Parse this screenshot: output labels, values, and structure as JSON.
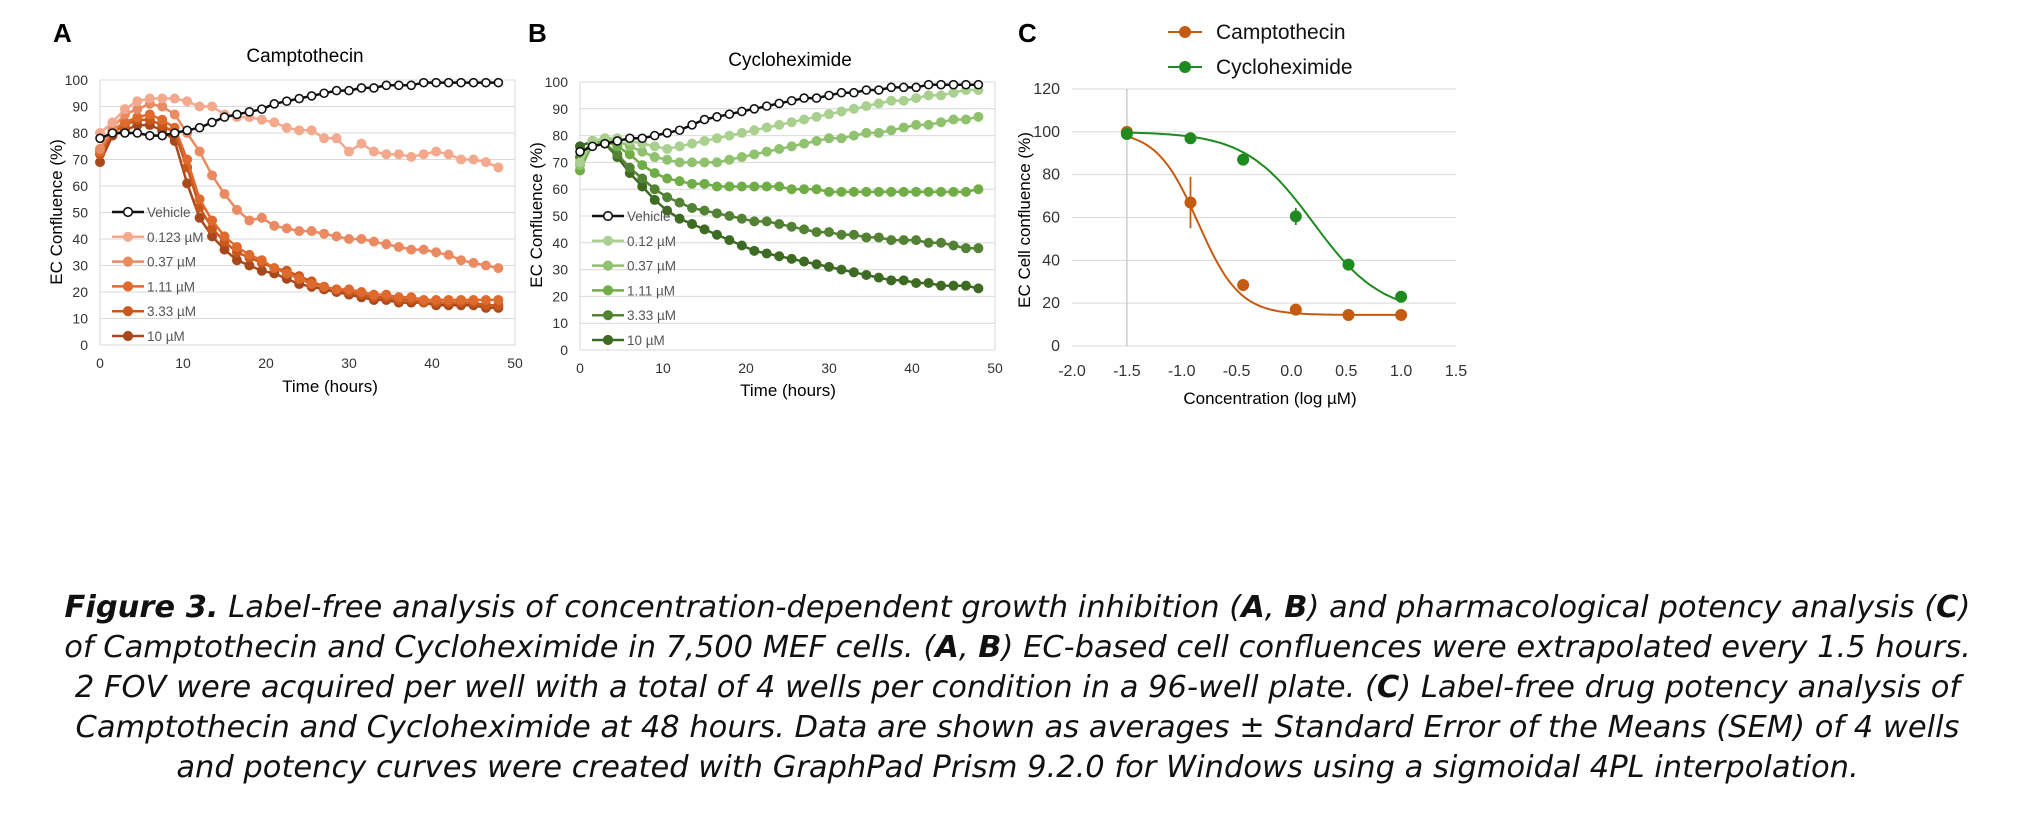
{
  "panels": {
    "A": {
      "letter": "A",
      "chart_data": {
        "type": "line",
        "title": "Camptothecin",
        "xlabel": "Time (hours)",
        "ylabel": "EC Confluence (%)",
        "xlim": [
          0,
          50
        ],
        "ylim": [
          0,
          100
        ],
        "xticks": [
          0,
          10,
          20,
          30,
          40,
          50
        ],
        "yticks": [
          0,
          10,
          20,
          30,
          40,
          50,
          60,
          70,
          80,
          90,
          100
        ],
        "legend_position": "lower-left",
        "x": [
          0,
          1.5,
          3,
          4.5,
          6,
          7.5,
          9,
          10.5,
          12,
          13.5,
          15,
          16.5,
          18,
          19.5,
          21,
          22.5,
          24,
          25.5,
          27,
          28.5,
          30,
          31.5,
          33,
          34.5,
          36,
          37.5,
          39,
          40.5,
          42,
          43.5,
          45,
          46.5,
          48
        ],
        "series": [
          {
            "name": "Vehicle",
            "color": "#111111",
            "open": true,
            "values": [
              78,
              80,
              80,
              80,
              79,
              79,
              80,
              81,
              82,
              84,
              86,
              87,
              88,
              89,
              91,
              92,
              93,
              94,
              95,
              96,
              96,
              97,
              97,
              98,
              98,
              98,
              99,
              99,
              99,
              99,
              99,
              99,
              99
            ]
          },
          {
            "name": "0.123 µM",
            "color": "#f3a98e",
            "values": [
              80,
              84,
              89,
              92,
              93,
              93,
              93,
              92,
              90,
              90,
              87,
              86,
              86,
              85,
              84,
              82,
              81,
              81,
              78,
              78,
              73,
              76,
              73,
              72,
              72,
              71,
              72,
              73,
              72,
              70,
              70,
              69,
              67
            ]
          },
          {
            "name": "0.37 µM",
            "color": "#ea8a62",
            "values": [
              74,
              82,
              87,
              89,
              91,
              90,
              87,
              80,
              73,
              64,
              57,
              51,
              47,
              48,
              45,
              44,
              43,
              43,
              42,
              41,
              40,
              40,
              39,
              38,
              37,
              36,
              36,
              35,
              34,
              32,
              31,
              30,
              29
            ]
          },
          {
            "name": "1.11 µM",
            "color": "#de6a2e",
            "values": [
              73,
              81,
              84,
              86,
              87,
              85,
              82,
              70,
              55,
              47,
              41,
              37,
              34,
              32,
              29,
              27,
              25,
              23,
              22,
              21,
              21,
              20,
              19,
              19,
              18,
              18,
              17,
              17,
              17,
              17,
              17,
              17,
              17
            ]
          },
          {
            "name": "3.33 µM",
            "color": "#c9581b",
            "values": [
              72,
              80,
              83,
              85,
              85,
              83,
              80,
              67,
              52,
              44,
              39,
              35,
              33,
              31,
              29,
              28,
              26,
              24,
              22,
              21,
              20,
              19,
              18,
              18,
              17,
              17,
              16,
              16,
              16,
              16,
              16,
              15,
              15
            ]
          },
          {
            "name": "10 µM",
            "color": "#a9481c",
            "values": [
              69,
              79,
              81,
              83,
              83,
              81,
              77,
              61,
              48,
              41,
              36,
              32,
              30,
              28,
              27,
              25,
              23,
              22,
              21,
              20,
              19,
              18,
              17,
              17,
              16,
              16,
              16,
              15,
              15,
              15,
              15,
              14,
              14
            ]
          }
        ]
      }
    },
    "B": {
      "letter": "B",
      "chart_data": {
        "type": "line",
        "title": "Cycloheximide",
        "xlabel": "Time (hours)",
        "ylabel": "EC Confluence (%)",
        "xlim": [
          0,
          50
        ],
        "ylim": [
          0,
          100
        ],
        "xticks": [
          0,
          10,
          20,
          30,
          40,
          50
        ],
        "yticks": [
          0,
          10,
          20,
          30,
          40,
          50,
          60,
          70,
          80,
          90,
          100
        ],
        "legend_position": "lower-left",
        "x": [
          0,
          1.5,
          3,
          4.5,
          6,
          7.5,
          9,
          10.5,
          12,
          13.5,
          15,
          16.5,
          18,
          19.5,
          21,
          22.5,
          24,
          25.5,
          27,
          28.5,
          30,
          31.5,
          33,
          34.5,
          36,
          37.5,
          39,
          40.5,
          42,
          43.5,
          45,
          46.5,
          48
        ],
        "series": [
          {
            "name": "Vehicle",
            "color": "#111111",
            "open": true,
            "values": [
              74,
              76,
              77,
              78,
              79,
              79,
              80,
              81,
              82,
              84,
              86,
              87,
              88,
              89,
              90,
              91,
              92,
              93,
              94,
              94,
              95,
              96,
              96,
              97,
              97,
              98,
              98,
              98,
              99,
              99,
              99,
              99,
              99
            ]
          },
          {
            "name": "0.12 µM",
            "color": "#a9d08e",
            "values": [
              70,
              78,
              79,
              79,
              78,
              77,
              76,
              75,
              76,
              77,
              78,
              79,
              80,
              81,
              82,
              83,
              84,
              85,
              86,
              87,
              88,
              89,
              90,
              91,
              92,
              93,
              93,
              94,
              95,
              95,
              96,
              97,
              97
            ]
          },
          {
            "name": "0.37 µM",
            "color": "#8fc16f",
            "values": [
              69,
              78,
              79,
              78,
              76,
              74,
              72,
              71,
              70,
              70,
              70,
              70,
              71,
              72,
              73,
              74,
              75,
              76,
              77,
              78,
              79,
              79,
              80,
              81,
              81,
              82,
              83,
              84,
              84,
              85,
              86,
              86,
              87
            ]
          },
          {
            "name": "1.11 µM",
            "color": "#70ad47",
            "values": [
              67,
              77,
              78,
              76,
              73,
              69,
              66,
              64,
              63,
              62,
              62,
              61,
              61,
              61,
              61,
              61,
              61,
              60,
              60,
              60,
              59,
              59,
              59,
              59,
              59,
              59,
              59,
              59,
              59,
              59,
              59,
              59,
              60
            ]
          },
          {
            "name": "3.33 µM",
            "color": "#548235",
            "values": [
              72,
              78,
              77,
              73,
              68,
              64,
              60,
              57,
              55,
              53,
              52,
              51,
              50,
              49,
              48,
              48,
              47,
              46,
              45,
              44,
              44,
              43,
              43,
              42,
              42,
              41,
              41,
              41,
              40,
              40,
              39,
              38,
              38
            ]
          },
          {
            "name": "10 µM",
            "color": "#3e6b23",
            "values": [
              76,
              78,
              77,
              72,
              66,
              61,
              56,
              52,
              49,
              47,
              45,
              43,
              41,
              39,
              37,
              36,
              35,
              34,
              33,
              32,
              31,
              30,
              29,
              28,
              27,
              26,
              26,
              25,
              25,
              24,
              24,
              24,
              23
            ]
          }
        ]
      }
    },
    "C": {
      "letter": "C",
      "chart_data": {
        "type": "scatter",
        "xlabel": "Concentration (log µM)",
        "ylabel": "EC Cell confluence (%)",
        "xlim": [
          -2.0,
          1.5
        ],
        "ylim": [
          0,
          120
        ],
        "xticks": [
          "-2.0",
          "-1.5",
          "-1.0",
          "-0.5",
          "0.0",
          "0.5",
          "1.0",
          "1.5"
        ],
        "yticks": [
          0,
          20,
          40,
          60,
          80,
          100,
          120
        ],
        "legend_position": "top",
        "fit": "sigmoidal 4PL",
        "series": [
          {
            "name": "Camptothecin",
            "color": "#c55a11",
            "x": [
              -1.5,
              -0.92,
              -0.44,
              0.04,
              0.52,
              1.0
            ],
            "values": [
              100,
              67,
              28.5,
              17,
              14.5,
              14.5
            ],
            "errors": [
              0,
              12,
              1.5,
              1.5,
              1,
              1
            ],
            "fit_params": {
              "bottom": 14.5,
              "top": 100.5,
              "logEC50": -0.85,
              "hill": 2.3
            }
          },
          {
            "name": "Cycloheximide",
            "color": "#1f8a1f",
            "x": [
              -1.5,
              -0.92,
              -0.44,
              0.04,
              0.52,
              1.0
            ],
            "values": [
              99,
              97,
              87,
              60.5,
              38,
              23
            ],
            "errors": [
              0,
              0.5,
              2.5,
              4,
              1,
              1
            ],
            "fit_params": {
              "bottom": 15,
              "top": 100,
              "logEC50": 0.2,
              "hill": 1.4
            }
          }
        ]
      }
    }
  },
  "caption": {
    "label": "Figure 3.",
    "s1": " Label-free analysis of concentration-dependent growth inhibition (",
    "A": "A",
    "comma": ",",
    "B": "B",
    "s2": ") and pharmacological potency analysis (",
    "C": "C",
    "s3": ") of Camptothecin and Cycloheximide in 7,500 MEF cells. (",
    "s4": ") EC-based cell confluences were extrapolated every 1.5 hours. 2 FOV were acquired per well with a total of 4 wells per condition in a 96-well plate. (",
    "s5": ") Label-free drug potency analysis of Camptothecin and Cycloheximide at 48 hours. Data are shown as averages ± Standard Error of the Means (SEM) of 4 wells and potency curves were created with GraphPad Prism 9.2.0 for Windows using a sigmoidal 4PL interpolation."
  }
}
